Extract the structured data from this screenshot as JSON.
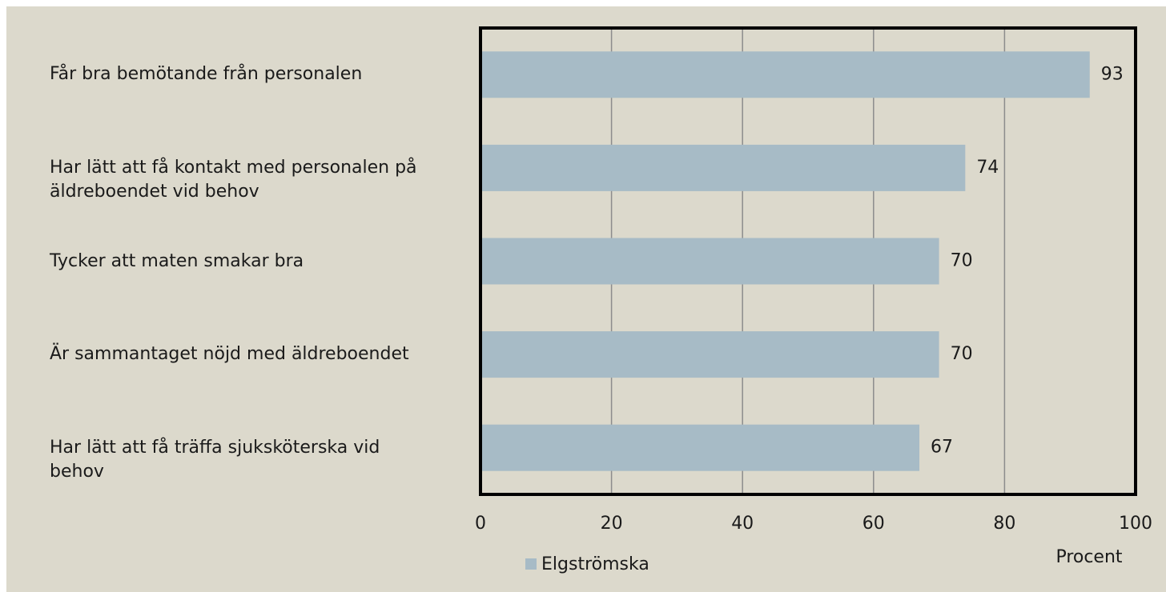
{
  "chart_data": {
    "type": "bar",
    "orientation": "horizontal",
    "categories": [
      "Får bra bemötande från personalen",
      "Har lätt att få kontakt med personalen på äldreboendet vid behov",
      "Tycker att maten smakar bra",
      "Är sammantaget nöjd med äldreboendet",
      "Har lätt att få träffa sjuksköterska vid behov"
    ],
    "series": [
      {
        "name": "Elgströmska",
        "color": "#a7bbc6",
        "values": [
          93,
          74,
          70,
          70,
          67
        ]
      }
    ],
    "xlim": [
      0,
      100
    ],
    "xticks": [
      0,
      20,
      40,
      60,
      80,
      100
    ],
    "grid": true,
    "x_axis_label": "Procent",
    "legend": "bottom-left"
  }
}
